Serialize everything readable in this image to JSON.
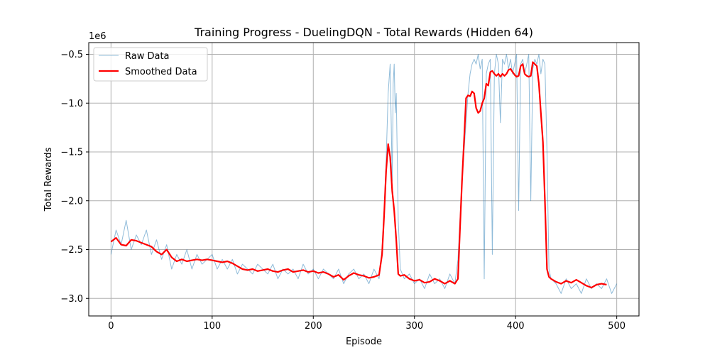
{
  "chart_data": {
    "type": "line",
    "title": "Training Progress - DuelingDQN - Total Rewards (Hidden 64)",
    "xlabel": "Episode",
    "ylabel": "Total Rewards",
    "y_scale_label": "1e6",
    "xlim": [
      -22,
      522
    ],
    "ylim": [
      -3.18,
      -0.38
    ],
    "x_ticks": [
      0,
      100,
      200,
      300,
      400,
      500
    ],
    "y_ticks": [
      -3.0,
      -2.5,
      -2.0,
      -1.5,
      -1.0,
      -0.5
    ],
    "x_tick_labels": [
      "0",
      "100",
      "200",
      "300",
      "400",
      "500"
    ],
    "y_tick_labels": [
      "−3.0",
      "−2.5",
      "−2.0",
      "−1.5",
      "−1.0",
      "−0.5"
    ],
    "grid": true,
    "legend_position": "top-left",
    "series": [
      {
        "name": "Raw Data",
        "color": "#1f77b4",
        "x": [
          0,
          5,
          10,
          15,
          20,
          25,
          30,
          35,
          40,
          45,
          50,
          55,
          60,
          65,
          70,
          75,
          80,
          85,
          90,
          95,
          100,
          105,
          110,
          115,
          120,
          125,
          130,
          135,
          140,
          145,
          150,
          155,
          160,
          165,
          170,
          175,
          180,
          185,
          190,
          195,
          200,
          205,
          210,
          215,
          220,
          225,
          230,
          235,
          240,
          245,
          250,
          255,
          260,
          265,
          268,
          270,
          272,
          274,
          276,
          277,
          278,
          279,
          280,
          281,
          282,
          284,
          286,
          290,
          295,
          300,
          305,
          310,
          315,
          320,
          325,
          330,
          335,
          340,
          343,
          345,
          347,
          349,
          351,
          353,
          355,
          357,
          359,
          361,
          363,
          365,
          367,
          369,
          371,
          373,
          375,
          377,
          379,
          381,
          383,
          385,
          387,
          389,
          391,
          393,
          395,
          397,
          399,
          401,
          403,
          405,
          407,
          409,
          411,
          413,
          415,
          417,
          419,
          421,
          423,
          425,
          427,
          429,
          431,
          433,
          435,
          440,
          445,
          450,
          455,
          460,
          465,
          470,
          475,
          480,
          485,
          490,
          495,
          500
        ],
        "y": [
          -2.55,
          -2.3,
          -2.45,
          -2.2,
          -2.5,
          -2.35,
          -2.45,
          -2.3,
          -2.55,
          -2.4,
          -2.6,
          -2.45,
          -2.7,
          -2.55,
          -2.65,
          -2.5,
          -2.7,
          -2.55,
          -2.65,
          -2.6,
          -2.55,
          -2.7,
          -2.6,
          -2.7,
          -2.6,
          -2.75,
          -2.65,
          -2.7,
          -2.75,
          -2.65,
          -2.7,
          -2.75,
          -2.65,
          -2.8,
          -2.7,
          -2.75,
          -2.7,
          -2.8,
          -2.65,
          -2.75,
          -2.7,
          -2.8,
          -2.7,
          -2.75,
          -2.8,
          -2.7,
          -2.85,
          -2.75,
          -2.7,
          -2.8,
          -2.75,
          -2.85,
          -2.7,
          -2.8,
          -2.5,
          -2.1,
          -1.6,
          -0.9,
          -0.6,
          -1.2,
          -1.8,
          -0.8,
          -0.6,
          -1.1,
          -0.9,
          -2.2,
          -2.7,
          -2.8,
          -2.75,
          -2.85,
          -2.8,
          -2.9,
          -2.75,
          -2.85,
          -2.8,
          -2.9,
          -2.75,
          -2.85,
          -2.6,
          -2.2,
          -1.8,
          -1.5,
          -1.2,
          -0.9,
          -0.7,
          -0.6,
          -0.55,
          -0.6,
          -0.5,
          -0.65,
          -0.55,
          -2.8,
          -0.7,
          -0.6,
          -0.55,
          -2.55,
          -0.7,
          -0.5,
          -0.6,
          -1.2,
          -0.55,
          -0.6,
          -0.5,
          -0.65,
          -0.55,
          -0.7,
          -0.6,
          -0.5,
          -2.1,
          -0.6,
          -0.55,
          -0.7,
          -0.6,
          -0.5,
          -2.0,
          -0.65,
          -0.55,
          -0.6,
          -0.5,
          -0.7,
          -0.55,
          -0.6,
          -1.5,
          -2.7,
          -2.8,
          -2.85,
          -2.95,
          -2.8,
          -2.9,
          -2.85,
          -2.95,
          -2.8,
          -2.9,
          -2.85,
          -2.9,
          -2.8,
          -2.95,
          -2.85
        ]
      },
      {
        "name": "Smoothed Data",
        "color": "#ff0000",
        "x": [
          0,
          5,
          10,
          15,
          20,
          25,
          30,
          35,
          40,
          45,
          50,
          55,
          60,
          65,
          70,
          75,
          80,
          85,
          90,
          95,
          100,
          105,
          110,
          115,
          120,
          125,
          130,
          135,
          140,
          145,
          150,
          155,
          160,
          165,
          170,
          175,
          180,
          185,
          190,
          195,
          200,
          205,
          210,
          215,
          220,
          225,
          230,
          235,
          240,
          245,
          250,
          255,
          260,
          265,
          268,
          270,
          272,
          274,
          276,
          278,
          280,
          282,
          284,
          286,
          290,
          295,
          300,
          305,
          310,
          315,
          320,
          325,
          330,
          335,
          340,
          343,
          345,
          347,
          349,
          351,
          353,
          355,
          357,
          359,
          361,
          363,
          365,
          367,
          369,
          371,
          373,
          375,
          377,
          379,
          381,
          383,
          385,
          387,
          389,
          391,
          393,
          395,
          397,
          399,
          401,
          403,
          405,
          407,
          409,
          411,
          413,
          415,
          417,
          419,
          421,
          423,
          425,
          427,
          429,
          431,
          433,
          435,
          440,
          445,
          450,
          455,
          460,
          465,
          470,
          475,
          480,
          485,
          490
        ],
        "y": [
          -2.42,
          -2.38,
          -2.45,
          -2.46,
          -2.4,
          -2.41,
          -2.43,
          -2.45,
          -2.47,
          -2.52,
          -2.55,
          -2.5,
          -2.58,
          -2.62,
          -2.6,
          -2.62,
          -2.61,
          -2.6,
          -2.61,
          -2.6,
          -2.61,
          -2.62,
          -2.63,
          -2.62,
          -2.64,
          -2.67,
          -2.7,
          -2.71,
          -2.7,
          -2.72,
          -2.71,
          -2.7,
          -2.72,
          -2.73,
          -2.71,
          -2.7,
          -2.73,
          -2.72,
          -2.71,
          -2.73,
          -2.72,
          -2.74,
          -2.73,
          -2.75,
          -2.78,
          -2.76,
          -2.81,
          -2.77,
          -2.74,
          -2.76,
          -2.77,
          -2.79,
          -2.78,
          -2.76,
          -2.55,
          -2.15,
          -1.7,
          -1.42,
          -1.55,
          -1.9,
          -2.1,
          -2.4,
          -2.75,
          -2.77,
          -2.76,
          -2.8,
          -2.82,
          -2.81,
          -2.84,
          -2.83,
          -2.8,
          -2.82,
          -2.85,
          -2.82,
          -2.85,
          -2.8,
          -2.3,
          -1.8,
          -1.4,
          -0.95,
          -0.92,
          -0.93,
          -0.88,
          -0.9,
          -1.05,
          -1.1,
          -1.08,
          -1.0,
          -0.95,
          -0.8,
          -0.82,
          -0.68,
          -0.67,
          -0.7,
          -0.72,
          -0.7,
          -0.73,
          -0.7,
          -0.72,
          -0.7,
          -0.66,
          -0.65,
          -0.68,
          -0.71,
          -0.73,
          -0.72,
          -0.62,
          -0.6,
          -0.7,
          -0.72,
          -0.73,
          -0.72,
          -0.58,
          -0.6,
          -0.62,
          -0.8,
          -1.1,
          -1.4,
          -2.0,
          -2.7,
          -2.78,
          -2.8,
          -2.83,
          -2.85,
          -2.82,
          -2.84,
          -2.81,
          -2.84,
          -2.87,
          -2.89,
          -2.86,
          -2.85,
          -2.86
        ]
      }
    ]
  }
}
